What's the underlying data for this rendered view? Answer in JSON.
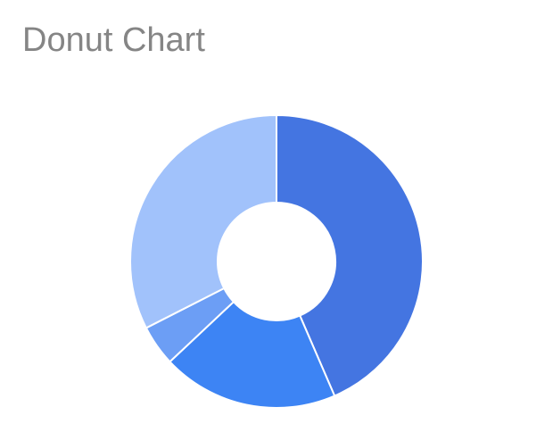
{
  "chart_data": {
    "type": "pie",
    "title": "Donut Chart",
    "donut": true,
    "legend": "none",
    "slices": [
      {
        "value": 43.5,
        "color": "#4475e1"
      },
      {
        "value": 19.5,
        "color": "#3d84f4"
      },
      {
        "value": 4.5,
        "color": "#6c9ef5"
      },
      {
        "value": 32.5,
        "color": "#a1c2fb"
      }
    ]
  }
}
